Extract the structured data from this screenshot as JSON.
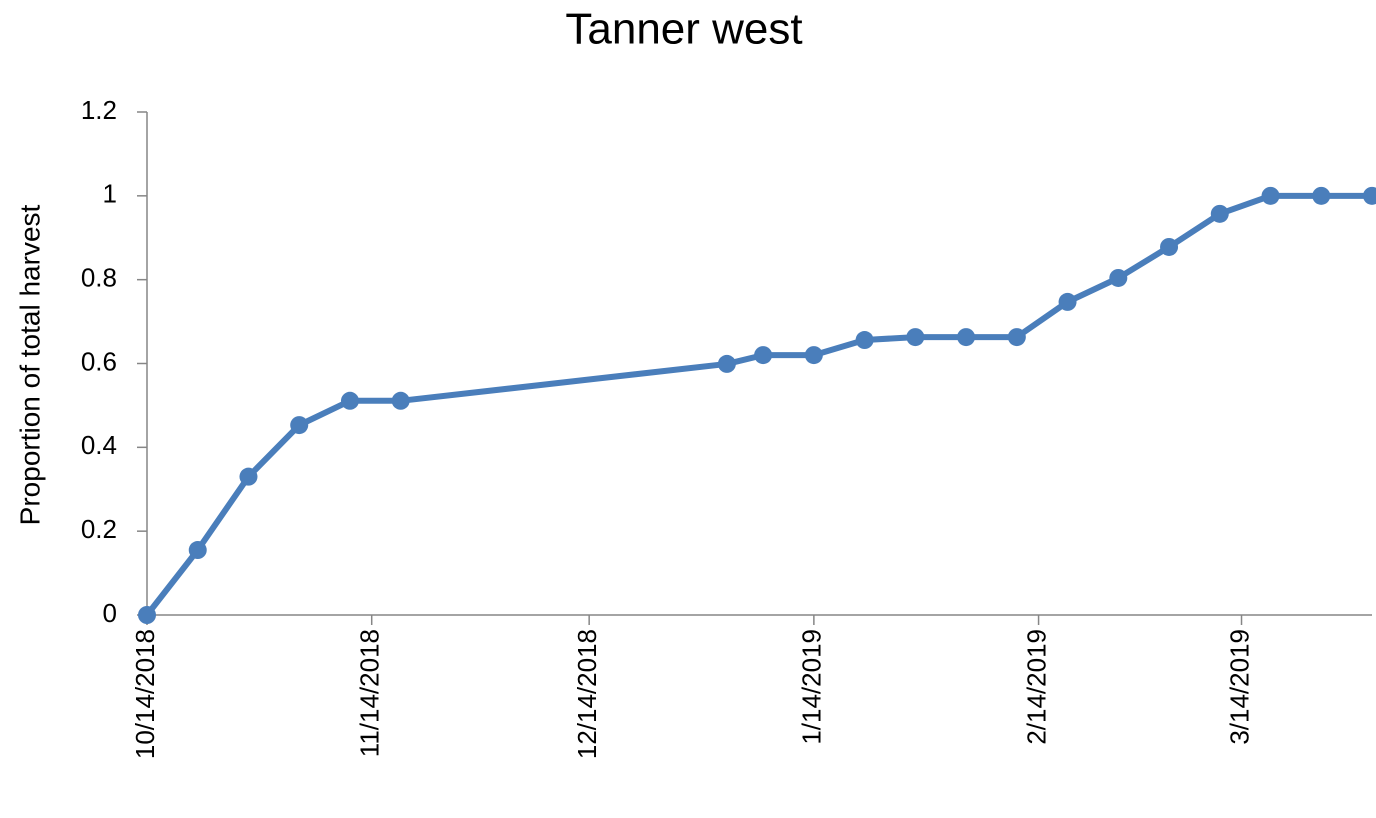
{
  "chart_data": {
    "type": "line",
    "title": "Tanner west",
    "y_label": "Proportion of total harvest",
    "x": [
      "2018-10-14",
      "2018-10-21",
      "2018-10-28",
      "2018-11-04",
      "2018-11-11",
      "2018-11-18",
      "2019-01-02",
      "2019-01-07",
      "2019-01-14",
      "2019-01-21",
      "2019-01-28",
      "2019-02-04",
      "2019-02-11",
      "2019-02-18",
      "2019-02-25",
      "2019-03-04",
      "2019-03-11",
      "2019-03-18",
      "2019-03-25",
      "2019-04-01"
    ],
    "series": [
      {
        "name": "Tanner west",
        "color": "#4a7ebb",
        "values": [
          0,
          0.155,
          0.33,
          0.453,
          0.511,
          0.511,
          0.599,
          0.62,
          0.62,
          0.656,
          0.663,
          0.663,
          0.663,
          0.747,
          0.804,
          0.878,
          0.957,
          1,
          1,
          1
        ]
      }
    ],
    "xlim": [
      "2018-10-14",
      "2019-04-01"
    ],
    "xticks": [
      {
        "value": "2018-10-14",
        "label": "10/14/2018"
      },
      {
        "value": "2018-11-14",
        "label": "11/14/2018"
      },
      {
        "value": "2018-12-14",
        "label": "12/14/2018"
      },
      {
        "value": "2019-01-14",
        "label": "1/14/2019"
      },
      {
        "value": "2019-02-14",
        "label": "2/14/2019"
      },
      {
        "value": "2019-03-14",
        "label": "3/14/2019"
      }
    ],
    "ylim": [
      0,
      1.2
    ],
    "yticks": [
      0,
      {
        "value": 0.2,
        "label": "0.2"
      },
      {
        "value": 0.4,
        "label": "0.4"
      },
      {
        "value": 0.6,
        "label": "0.6"
      },
      {
        "value": 0.8,
        "label": "0.8"
      },
      1,
      {
        "value": 1.2,
        "label": "1.2"
      }
    ],
    "grid": false
  }
}
